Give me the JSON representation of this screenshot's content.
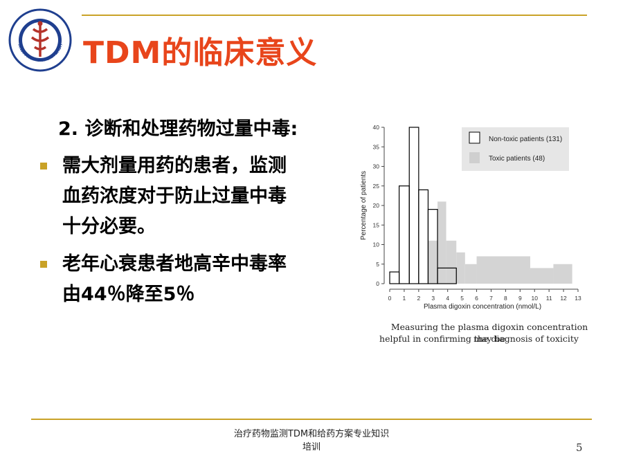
{
  "slide": {
    "title": "TDM的临床意义",
    "heading": "2. 诊断和处理药物过量中毒:",
    "bullets": [
      {
        "lines": [
          "需大剂量用药的患者，监测",
          "血药浓度对于防止过量中毒",
          "十分必要。"
        ]
      },
      {
        "lines": [
          "老年心衰患者地高辛中毒率",
          "由44％降至5％"
        ]
      }
    ],
    "caption_lines": [
      "Measuring the plasma digoxin concentration may be",
      "helpful in confirming the diagnosis of toxicity"
    ],
    "footer_lines": [
      "治疗药物监测TDM和给药方案专业知识",
      "培训"
    ],
    "page_number": "5",
    "logo": {
      "text": "TIANJIN MEDICAL UNIVERSITY"
    },
    "colors": {
      "accent": "#c9a227",
      "title": "#e8451b",
      "logo_blue": "#1f3f8f"
    }
  },
  "chart_data": {
    "type": "bar",
    "xlabel": "Plasma digoxin concentration (nmol/L)",
    "ylabel": "Percentage of patients",
    "xlim": [
      0,
      13
    ],
    "ylim": [
      0,
      40
    ],
    "xticks": [
      "0",
      "1",
      "2",
      "3",
      "4",
      "5",
      "6",
      "7",
      "8",
      "9",
      "10",
      "11",
      "12",
      "13"
    ],
    "yticks": [
      "0",
      "5",
      "10",
      "15",
      "20",
      "25",
      "30",
      "35",
      "40"
    ],
    "legend_placement": "top-right",
    "series": [
      {
        "name": "Non-toxic patients (131)",
        "style": "outline",
        "bins": [
          {
            "x0": 0.0,
            "x1": 0.65,
            "value": 3
          },
          {
            "x0": 0.65,
            "x1": 1.35,
            "value": 25
          },
          {
            "x0": 1.35,
            "x1": 2.0,
            "value": 40
          },
          {
            "x0": 2.0,
            "x1": 2.65,
            "value": 24
          },
          {
            "x0": 2.65,
            "x1": 3.3,
            "value": 19
          },
          {
            "x0": 3.3,
            "x1": 4.6,
            "value": 4
          }
        ]
      },
      {
        "name": "Toxic patients (48)",
        "style": "filled",
        "color": "#d4d4d4",
        "bins": [
          {
            "x0": 2.65,
            "x1": 3.3,
            "value": 11
          },
          {
            "x0": 3.3,
            "x1": 3.9,
            "value": 21
          },
          {
            "x0": 3.9,
            "x1": 4.6,
            "value": 11
          },
          {
            "x0": 4.6,
            "x1": 5.2,
            "value": 8
          },
          {
            "x0": 5.2,
            "x1": 6.0,
            "value": 5
          },
          {
            "x0": 6.0,
            "x1": 9.7,
            "value": 7
          },
          {
            "x0": 9.7,
            "x1": 11.3,
            "value": 4
          },
          {
            "x0": 11.3,
            "x1": 12.6,
            "value": 5
          }
        ]
      }
    ]
  }
}
